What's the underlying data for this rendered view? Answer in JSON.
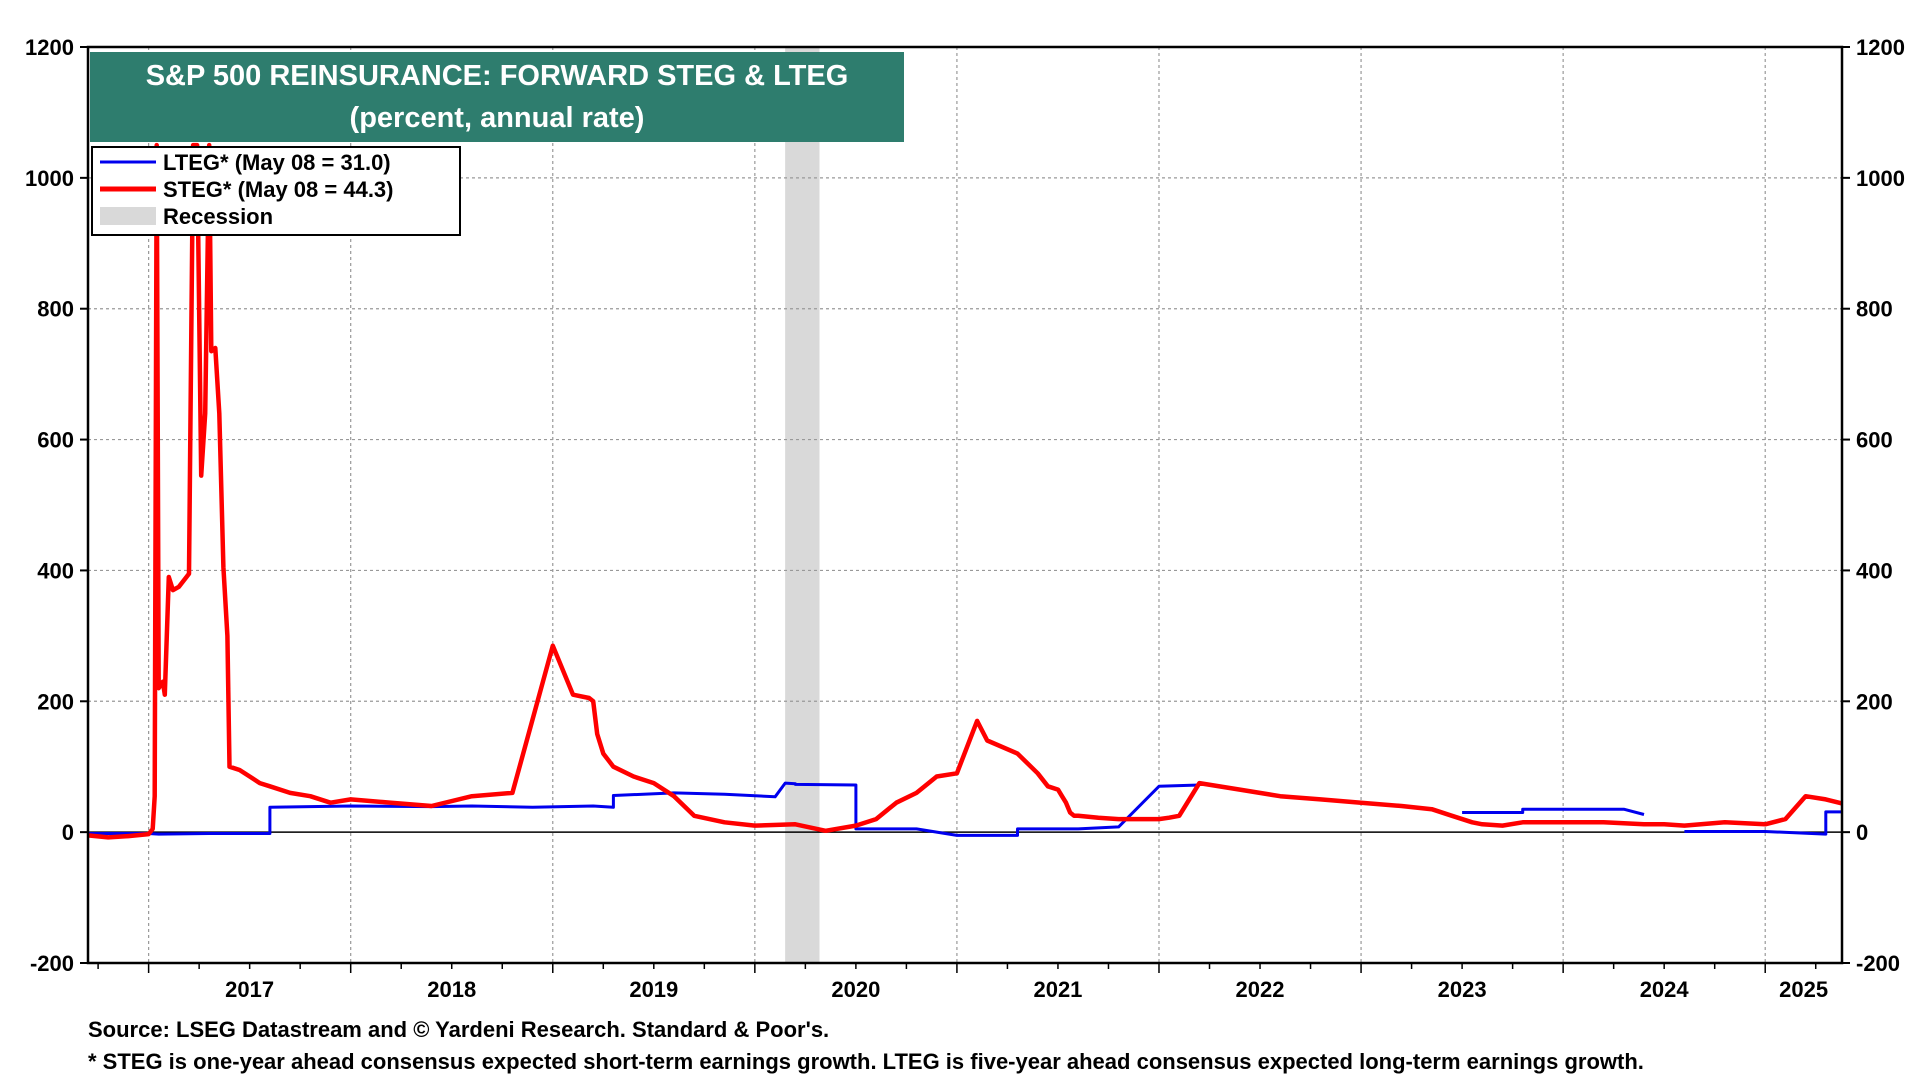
{
  "chart_data": {
    "type": "line",
    "title": "S&P 500 REINSURANCE: FORWARD STEG & LTEG",
    "subtitle": "(percent, annual rate)",
    "xlabel": "",
    "ylabel": "",
    "ylim": [
      -200,
      1200
    ],
    "y_ticks": [
      "1200",
      "1000",
      "800",
      "600",
      "400",
      "200",
      "0",
      "-200"
    ],
    "y_tick_values": [
      1200,
      1000,
      800,
      600,
      400,
      200,
      0,
      -200
    ],
    "xlim": [
      2016.7,
      2025.38
    ],
    "x_year_labels": [
      "2017",
      "2018",
      "2019",
      "2020",
      "2021",
      "2022",
      "2023",
      "2024",
      "2025"
    ],
    "grid": true,
    "legend_placement": "top-left",
    "colors": {
      "lteg": "#0000ee",
      "steg": "#ff0000",
      "recession": "#d9d9d9",
      "title_bg": "#2e7d6e"
    },
    "recession": {
      "start": 2020.15,
      "end": 2020.32,
      "label": "Recession"
    },
    "series": [
      {
        "name": "LTEG* (May 08 = 31.0)",
        "key": "lteg",
        "segments": [
          {
            "x": [
              2016.7,
              2017.0,
              2017.05,
              2017.3,
              2017.6,
              2017.6,
              2018.0,
              2018.4,
              2018.6,
              2018.9,
              2019.2,
              2019.3,
              2019.3,
              2019.6,
              2019.85,
              2020.1,
              2020.15,
              2020.2,
              2020.2,
              2020.5,
              2020.5,
              2020.8,
              2021.0,
              2021.1,
              2021.3,
              2021.3,
              2021.6,
              2021.6,
              2021.8,
              2021.8,
              2022.0,
              2022.2
            ],
            "y": [
              -2,
              -2,
              -3,
              -2,
              -2,
              38,
              40,
              39,
              40,
              38,
              40,
              38,
              56,
              60,
              58,
              54,
              75,
              74,
              73,
              72,
              5,
              5,
              -5,
              -5,
              -5,
              5,
              5,
              5,
              8,
              8,
              70,
              72
            ]
          },
          {
            "x": [
              2023.5,
              2023.8,
              2023.8,
              2024.0,
              2024.3,
              2024.4
            ],
            "y": [
              30,
              30,
              35,
              35,
              35,
              27
            ]
          },
          {
            "x": [
              2024.6,
              2025.0,
              2025.3,
              2025.3,
              2025.38
            ],
            "y": [
              1,
              1,
              -3,
              31,
              31
            ]
          }
        ]
      },
      {
        "name": "STEG* (May 08 = 44.3)",
        "key": "steg",
        "segments": [
          {
            "x": [
              2016.7,
              2016.8,
              2016.9,
              2017.0,
              2017.02,
              2017.03,
              2017.04,
              2017.05,
              2017.07,
              2017.08,
              2017.1,
              2017.12,
              2017.15,
              2017.2,
              2017.22,
              2017.24,
              2017.26,
              2017.28,
              2017.3,
              2017.31,
              2017.33,
              2017.35,
              2017.37,
              2017.39,
              2017.4,
              2017.45,
              2017.5,
              2017.55,
              2017.6,
              2017.6,
              2017.7,
              2017.8,
              2017.9,
              2018.0,
              2018.2,
              2018.4,
              2018.6,
              2018.8,
              2019.0,
              2019.1,
              2019.18,
              2019.2,
              2019.22,
              2019.25,
              2019.3,
              2019.4,
              2019.5,
              2019.6,
              2019.7,
              2019.85,
              2020.0,
              2020.2,
              2020.35,
              2020.5,
              2020.6,
              2020.7,
              2020.8,
              2020.9,
              2021.0,
              2021.1,
              2021.15,
              2021.3,
              2021.4,
              2021.45,
              2021.5,
              2021.52,
              2021.54,
              2021.56,
              2021.58,
              2021.6,
              2021.7,
              2021.8,
              2021.9,
              2022.0,
              2022.05,
              2022.1,
              2022.2,
              2022.4,
              2022.6,
              2022.8,
              2023.0,
              2023.2,
              2023.35,
              2023.45,
              2023.55,
              2023.6,
              2023.7,
              2023.8,
              2024.0,
              2024.2,
              2024.4,
              2024.5,
              2024.6,
              2024.8,
              2025.0,
              2025.1,
              2025.2,
              2025.3,
              2025.38
            ],
            "y": [
              -5,
              -8,
              -6,
              -3,
              5,
              55,
              1050,
              220,
              230,
              210,
              390,
              370,
              375,
              395,
              1050,
              1050,
              545,
              640,
              1050,
              735,
              740,
              640,
              405,
              300,
              100,
              95,
              85,
              75,
              70,
              70,
              60,
              55,
              45,
              50,
              45,
              40,
              55,
              60,
              285,
              210,
              205,
              200,
              150,
              120,
              100,
              85,
              75,
              55,
              25,
              15,
              10,
              12,
              2,
              10,
              20,
              45,
              60,
              85,
              90,
              170,
              140,
              120,
              90,
              70,
              65,
              55,
              45,
              30,
              25,
              25,
              22,
              20,
              20,
              20,
              22,
              25,
              75,
              65,
              55,
              50,
              45,
              40,
              35,
              25,
              15,
              12,
              10,
              15,
              15,
              15,
              12,
              12,
              10,
              15,
              12,
              20,
              55,
              50,
              44
            ]
          }
        ]
      }
    ]
  },
  "footer": {
    "source": "Source: LSEG Datastream and © Yardeni Research. Standard & Poor's.",
    "note": "* STEG is one-year ahead consensus expected short-term earnings growth. LTEG is five-year ahead consensus expected long-term earnings growth."
  }
}
